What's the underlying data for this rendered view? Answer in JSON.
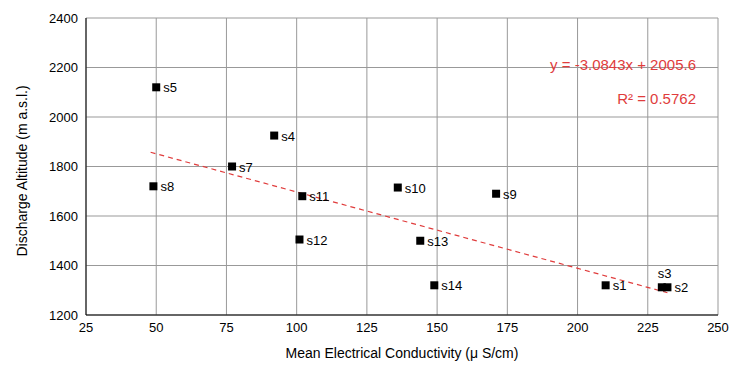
{
  "chart_data": {
    "type": "scatter",
    "x_label": "Mean Electrical Conductivity (μ S/cm)",
    "y_label": "Discharge Altitude (m a.s.l.)",
    "x": [
      50,
      92,
      77,
      49,
      102,
      136,
      171,
      101,
      144,
      149,
      210,
      230,
      232
    ],
    "values": [
      2120,
      1925,
      1800,
      1720,
      1680,
      1715,
      1690,
      1505,
      1500,
      1320,
      1320,
      1312,
      1312
    ],
    "point_labels": [
      "s5",
      "s4",
      "s7",
      "s8",
      "s11",
      "s10",
      "s9",
      "s12",
      "s13",
      "s14",
      "s1",
      "s3",
      "s2"
    ],
    "color": "#000000",
    "marker": "square",
    "xlim": [
      25,
      250
    ],
    "xticks": [
      25,
      50,
      75,
      100,
      125,
      150,
      175,
      200,
      225,
      250
    ],
    "ylim": [
      1200,
      2400
    ],
    "yticks": [
      1200,
      1400,
      1600,
      1800,
      2000,
      2200,
      2400
    ],
    "grid": true,
    "trendline": {
      "x": [
        48,
        232
      ],
      "values": [
        1857.5,
        1290.0
      ],
      "color": "#e03c3c",
      "line_style": "dashed",
      "equation": "y = -3.0843x + 2005.6",
      "r2": "R² = 0.5762"
    }
  }
}
